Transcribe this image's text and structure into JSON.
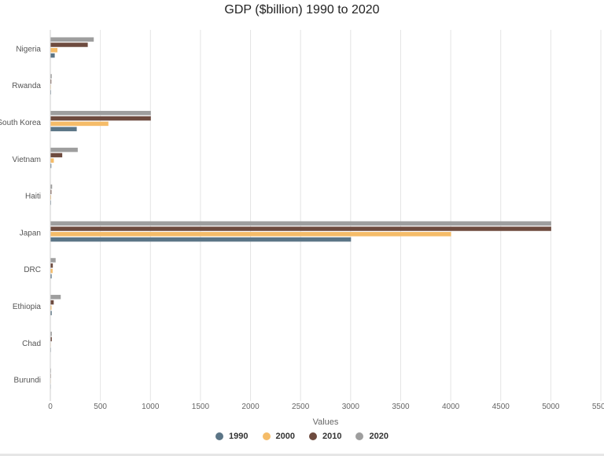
{
  "chart_data": {
    "type": "bar",
    "orientation": "horizontal",
    "title": "GDP ($billion) 1990 to 2020",
    "xlabel": "Values",
    "ylabel": "",
    "xlim": [
      0,
      5500
    ],
    "x_ticks": [
      0,
      500,
      1000,
      1500,
      2000,
      2500,
      3000,
      3500,
      4000,
      4500,
      5000,
      5500
    ],
    "grid": true,
    "legend_position": "bottom",
    "categories": [
      "Nigeria",
      "Rwanda",
      "South Korea",
      "Vietnam",
      "Haiti",
      "Japan",
      "DRC",
      "Ethiopia",
      "Chad",
      "Burundi"
    ],
    "series": [
      {
        "name": "1990",
        "color": "#5b7586",
        "values": [
          40,
          3,
          260,
          6,
          3,
          3000,
          9,
          10,
          2,
          1
        ]
      },
      {
        "name": "2000",
        "color": "#f5bc68",
        "values": [
          67,
          2,
          576,
          31,
          4,
          4000,
          19,
          8,
          1,
          1
        ]
      },
      {
        "name": "2010",
        "color": "#6e4b3f",
        "values": [
          370,
          6,
          1000,
          115,
          7,
          5000,
          21,
          30,
          11,
          2
        ]
      },
      {
        "name": "2020",
        "color": "#9e9e9e",
        "values": [
          430,
          10,
          1000,
          270,
          14,
          5000,
          49,
          100,
          11,
          3
        ]
      }
    ]
  }
}
